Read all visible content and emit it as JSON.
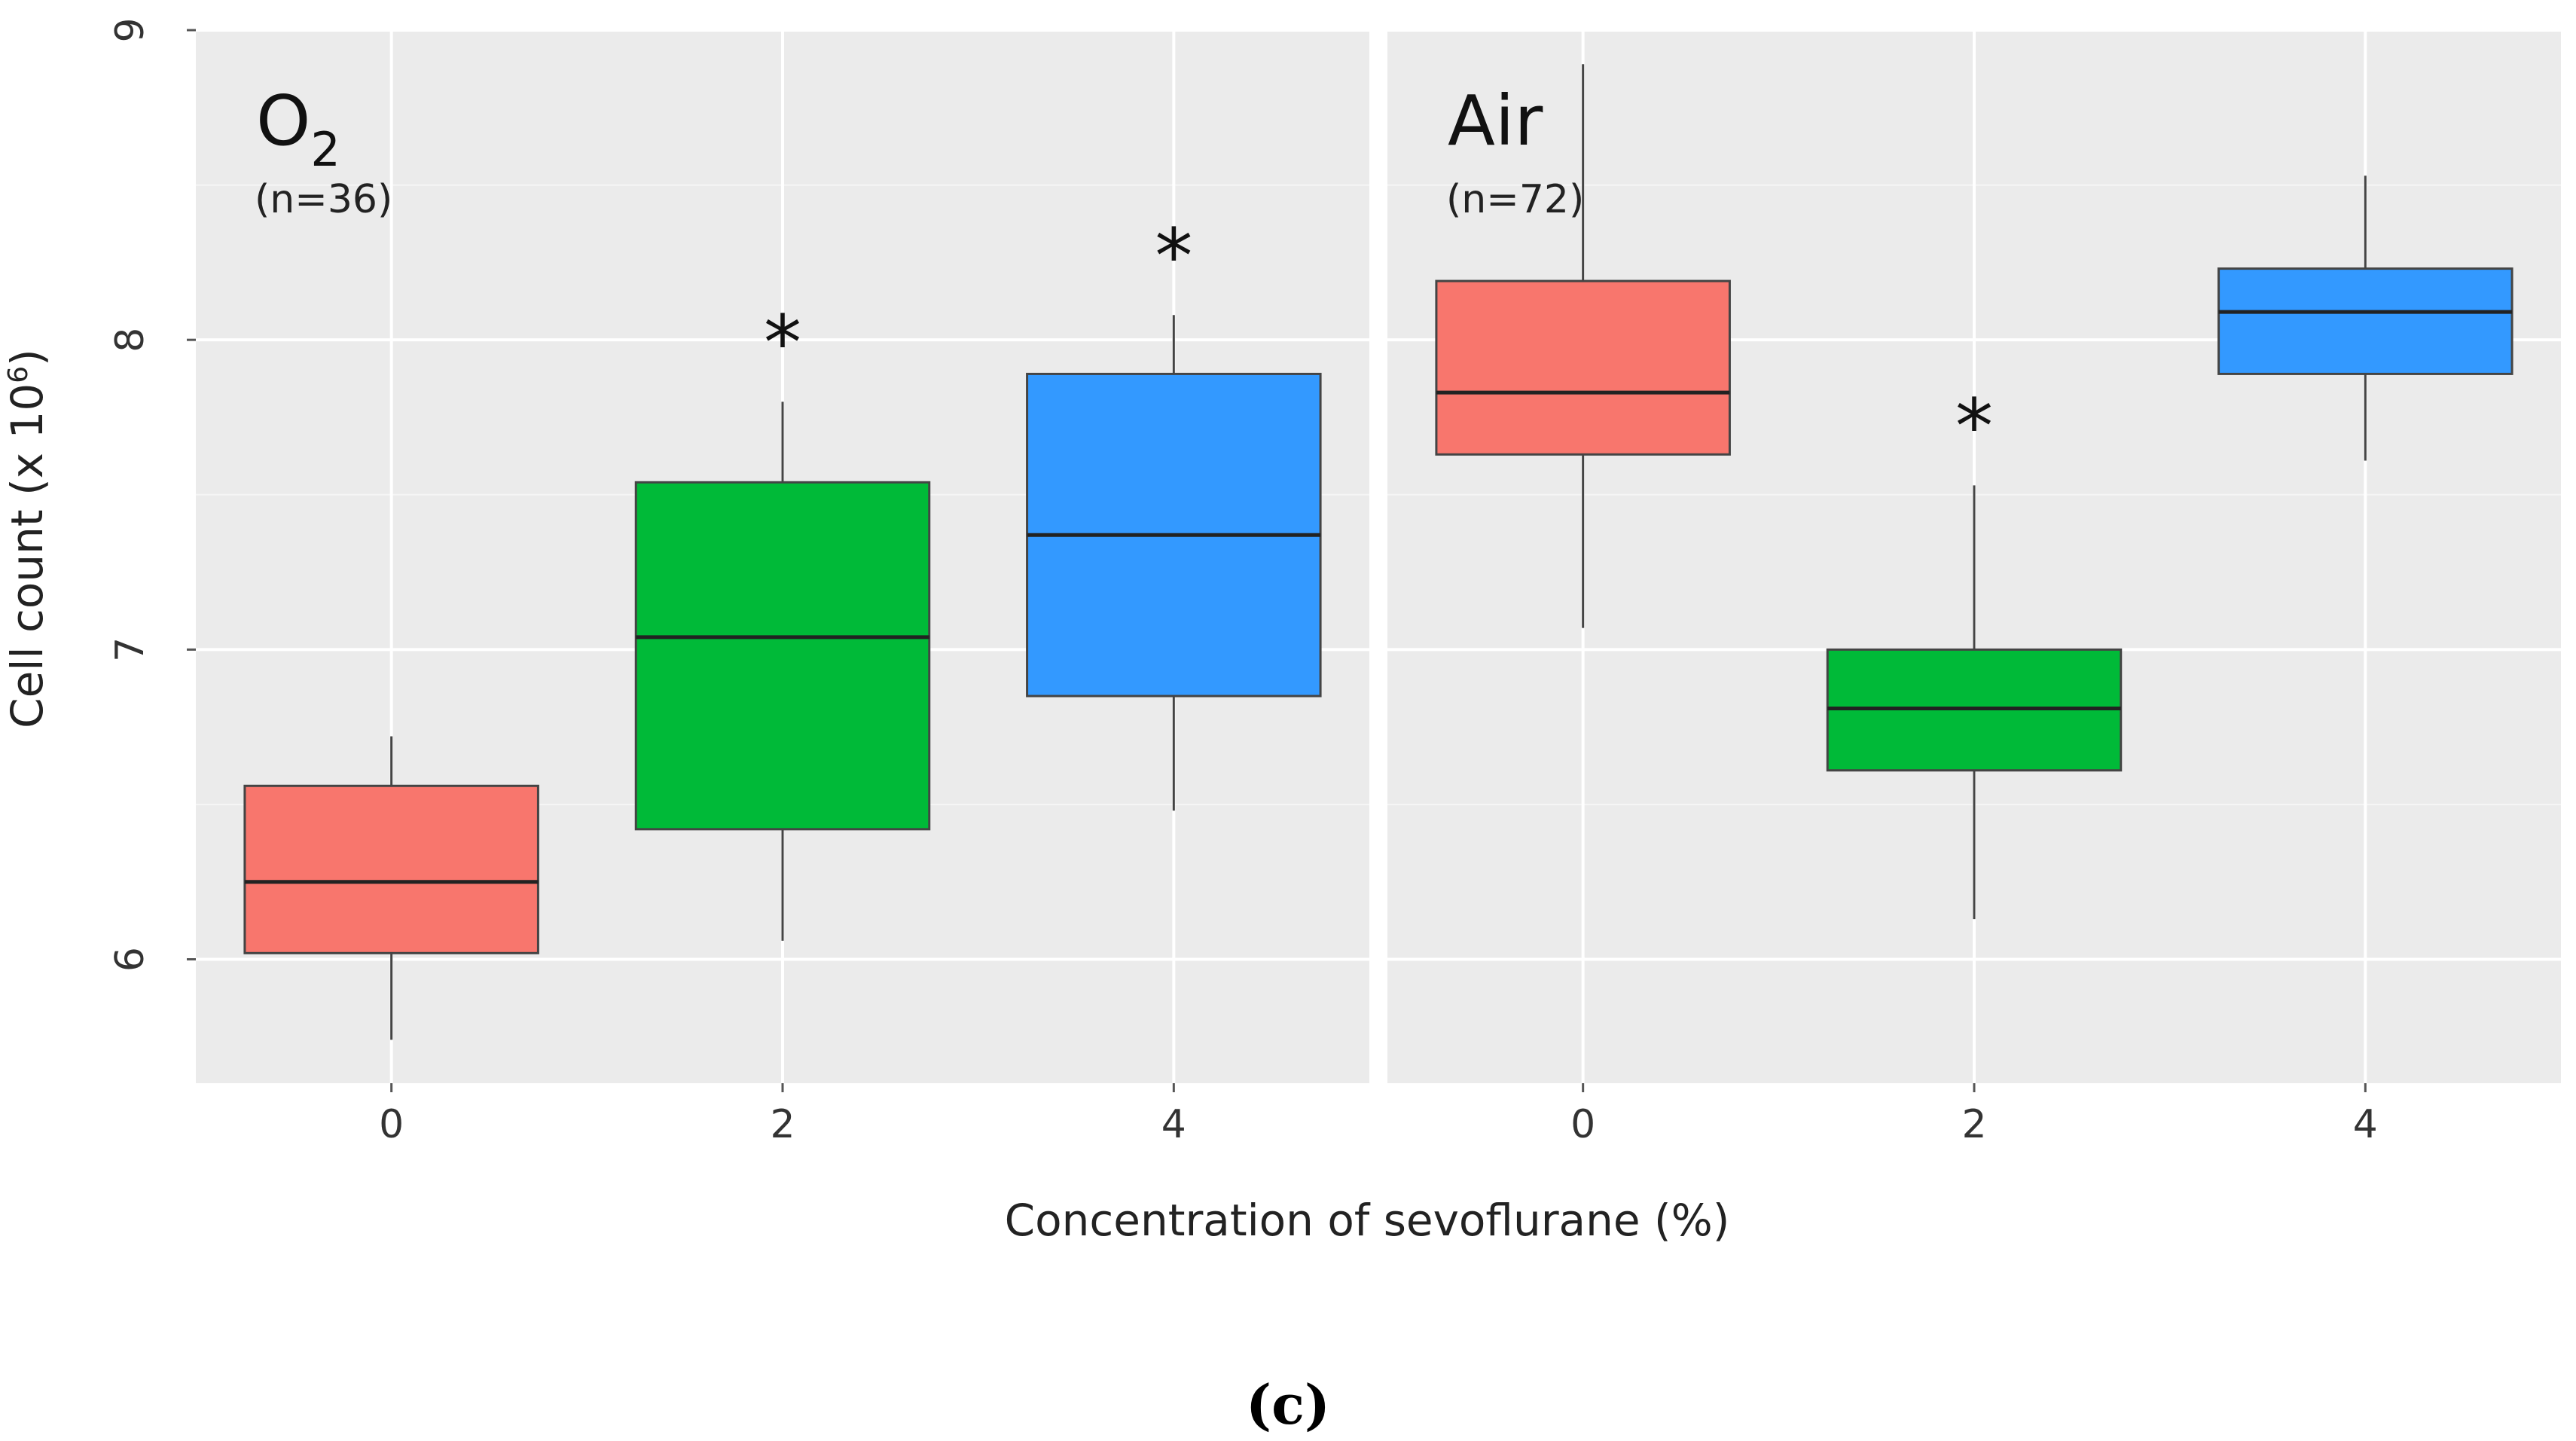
{
  "chart_data": {
    "type": "box",
    "xlabel": "Concentration of sevoflurane (%)",
    "ylabel": "Cell count (x 10",
    "ylabel_sup": "6",
    "ylabel_close": ")",
    "ylim": [
      5.6,
      9.0
    ],
    "yticks": [
      "6",
      "7",
      "8",
      "9"
    ],
    "categories": [
      "0",
      "2",
      "4"
    ],
    "series_colors": [
      "#f8766d",
      "#00ba38",
      "#3399ff"
    ],
    "caption": "(c)",
    "panels": [
      {
        "title_main": "O",
        "title_sub": "2",
        "n_label": "(n=36)",
        "boxes": [
          {
            "category": "0",
            "whisker_low": 5.74,
            "q1": 6.02,
            "median": 6.25,
            "q3": 6.56,
            "whisker_high": 6.72,
            "star": ""
          },
          {
            "category": "2",
            "whisker_low": 6.06,
            "q1": 6.42,
            "median": 7.04,
            "q3": 7.54,
            "whisker_high": 7.8,
            "star": "*"
          },
          {
            "category": "4",
            "whisker_low": 6.48,
            "q1": 6.85,
            "median": 7.37,
            "q3": 7.89,
            "whisker_high": 8.08,
            "star": "*"
          }
        ]
      },
      {
        "title_main": "Air",
        "title_sub": "",
        "n_label": "(n=72)",
        "boxes": [
          {
            "category": "0",
            "whisker_low": 7.07,
            "q1": 7.63,
            "median": 7.83,
            "q3": 8.19,
            "whisker_high": 8.89,
            "star": ""
          },
          {
            "category": "2",
            "whisker_low": 6.13,
            "q1": 6.61,
            "median": 6.81,
            "q3": 7.0,
            "whisker_high": 7.53,
            "star": "*"
          },
          {
            "category": "4",
            "whisker_low": 7.61,
            "q1": 7.89,
            "median": 8.09,
            "q3": 8.23,
            "whisker_high": 8.53,
            "star": ""
          }
        ]
      }
    ]
  }
}
